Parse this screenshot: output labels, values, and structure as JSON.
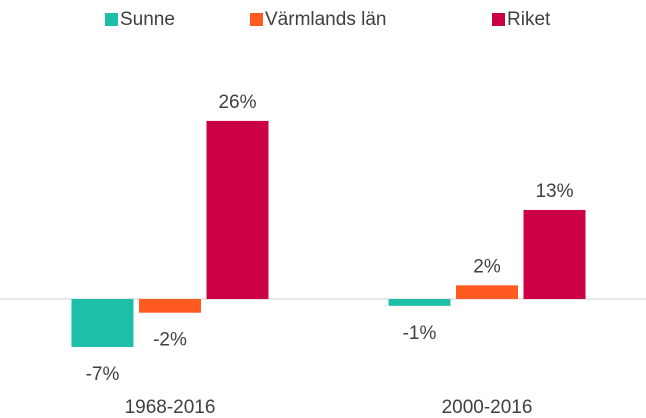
{
  "chart_data": {
    "type": "bar",
    "categories": [
      "1968-2016",
      "2000-2016"
    ],
    "series": [
      {
        "name": "Sunne",
        "color": "#1dbfa8",
        "values": [
          -7,
          -1
        ],
        "value_labels": [
          "-7%",
          "-1%"
        ]
      },
      {
        "name": "Värmlands län",
        "color": "#ff5a1f",
        "values": [
          -2,
          2
        ],
        "value_labels": [
          "-2%",
          "2%"
        ]
      },
      {
        "name": "Riket",
        "color": "#cc0044",
        "values": [
          26,
          13
        ],
        "value_labels": [
          "26%",
          "13%"
        ]
      }
    ],
    "ylim": [
      -10,
      30
    ],
    "legend": "top"
  }
}
